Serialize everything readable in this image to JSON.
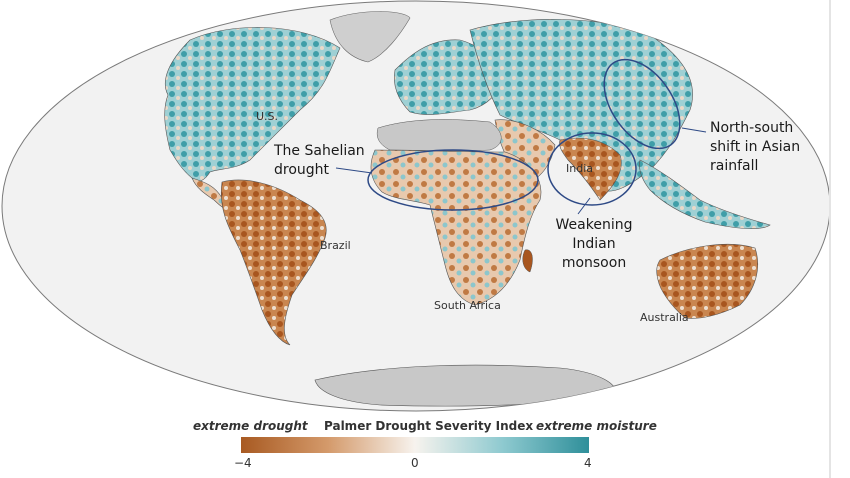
{
  "labels": {
    "us": "U.S.",
    "sahel_line1": "The Sahelian",
    "sahel_line2": "drought",
    "india": "India",
    "asian_line1": "North-south",
    "asian_line2": "shift in Asian",
    "asian_line3": "rainfall",
    "brazil": "Brazil",
    "indian_line1": "Weakening",
    "indian_line2": "Indian",
    "indian_line3": "monsoon",
    "south_africa": "South Africa",
    "australia": "Australia"
  },
  "legend": {
    "left_label": "extreme drought",
    "title": "Palmer Drought Severity Index",
    "right_label": "extreme moisture",
    "tick_min": "−4",
    "tick_mid": "0",
    "tick_max": "4",
    "range": [
      -4,
      4
    ]
  },
  "colors": {
    "ocean": "#f2f2f2",
    "drought": "#b0622a",
    "neutral": "#f7f3ee",
    "moisture": "#3a9aa5",
    "no_data": "#c8c8c8",
    "highlight_ellipse": "#2e4a86"
  }
}
